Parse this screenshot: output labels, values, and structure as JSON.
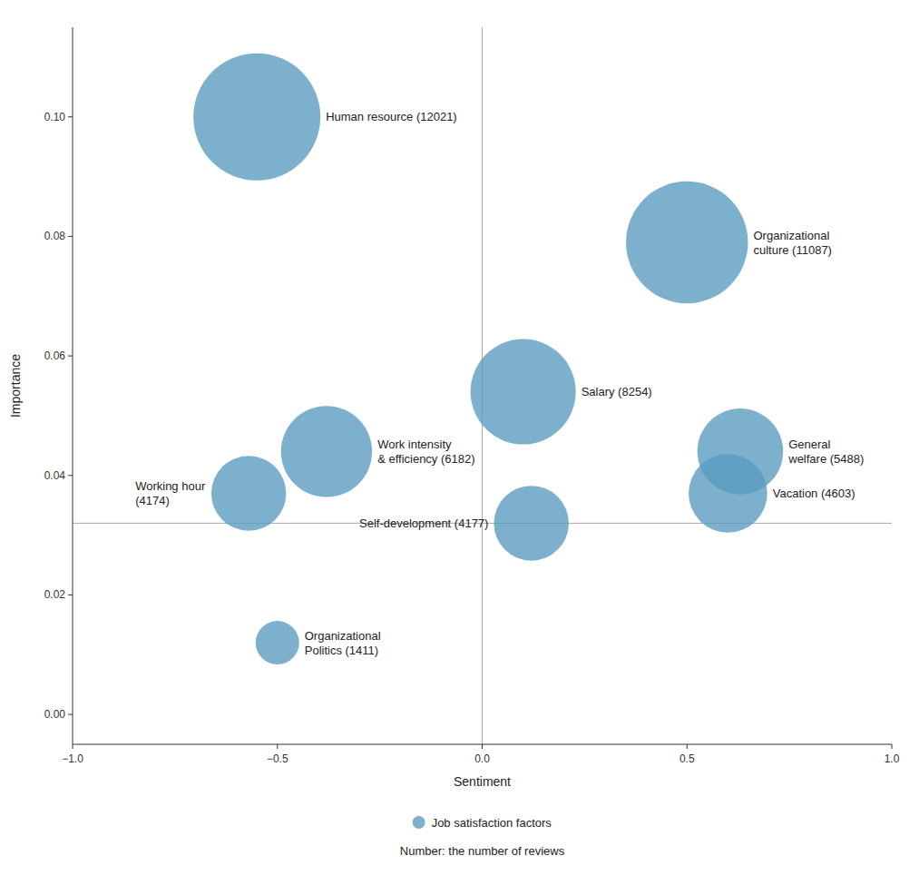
{
  "chart_data": {
    "type": "bubble",
    "xlabel": "Sentiment",
    "ylabel": "Importance",
    "series": [
      {
        "name": "Job satisfaction factors",
        "color": "#5b9cc0",
        "x": [
          -0.55,
          0.5,
          0.1,
          -0.38,
          0.63,
          0.6,
          0.12,
          -0.57,
          -0.5
        ],
        "values": [
          0.1,
          0.079,
          0.054,
          0.044,
          0.044,
          0.037,
          0.032,
          0.037,
          0.012
        ],
        "sizes": [
          12021,
          11087,
          8254,
          6182,
          5488,
          4603,
          4177,
          4174,
          1411
        ],
        "labels": [
          "Human resource (12021)",
          "Organizational\nculture (11087)",
          "Salary (8254)",
          "Work intensity\n& efficiency (6182)",
          "General\nwelfare (5488)",
          "Vacation (4603)",
          "Self-development (4177)",
          "Working hour\n(4174)",
          "Organizational\nPolitics (1411)"
        ]
      }
    ],
    "note": "Number: the number of reviews",
    "legend": "bottom",
    "xlim": [
      -1.0,
      1.0
    ],
    "xticks": [
      {
        "value": -1.0,
        "label": "−1.0"
      },
      {
        "value": -0.5,
        "label": "−0.5"
      },
      {
        "value": 0.0,
        "label": "0.0"
      },
      0.5,
      {
        "value": 1.0,
        "label": "1.0"
      }
    ],
    "ylim": [
      -0.005,
      0.115
    ],
    "yticks": [
      {
        "value": 0,
        "label": "0.00"
      },
      0.02,
      0.04,
      0.06,
      0.08,
      {
        "value": 0.1,
        "label": "0.10"
      }
    ],
    "hline_y": 0.032,
    "vline_x": 0
  }
}
